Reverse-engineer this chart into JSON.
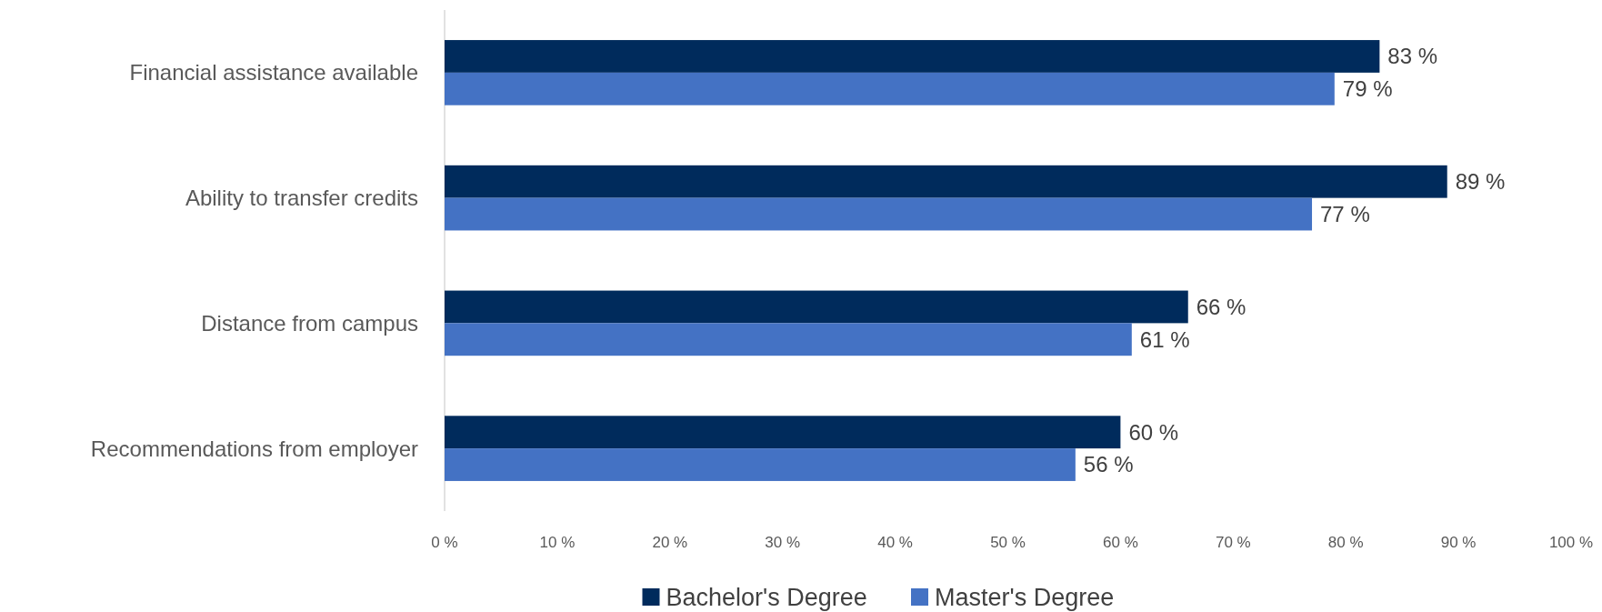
{
  "chart_data": {
    "type": "bar",
    "orientation": "horizontal",
    "categories": [
      "Financial assistance available",
      "Ability to transfer credits",
      "Distance from campus",
      "Recommendations from employer"
    ],
    "series": [
      {
        "name": "Bachelor's Degree",
        "color": "#002b5c",
        "values": [
          83,
          89,
          66,
          60
        ],
        "value_labels": [
          "83 %",
          "89 %",
          "66 %",
          "60 %"
        ]
      },
      {
        "name": "Master's Degree",
        "color": "#4472c4",
        "values": [
          79,
          77,
          61,
          56
        ],
        "value_labels": [
          "79 %",
          "77 %",
          "61 %",
          "56 %"
        ]
      }
    ],
    "xlim": [
      0,
      100
    ],
    "xticks": [
      {
        "value": 0,
        "label": "0 %"
      },
      {
        "value": 10,
        "label": "10 %"
      },
      {
        "value": 20,
        "label": "20 %"
      },
      {
        "value": 30,
        "label": "30 %"
      },
      {
        "value": 40,
        "label": "40 %"
      },
      {
        "value": 50,
        "label": "50 %"
      },
      {
        "value": 60,
        "label": "60 %"
      },
      {
        "value": 70,
        "label": "70 %"
      },
      {
        "value": 80,
        "label": "80 %"
      },
      {
        "value": 90,
        "label": "90 %"
      },
      {
        "value": 100,
        "label": "100 %"
      }
    ],
    "grid": false,
    "legend": "bottom"
  }
}
